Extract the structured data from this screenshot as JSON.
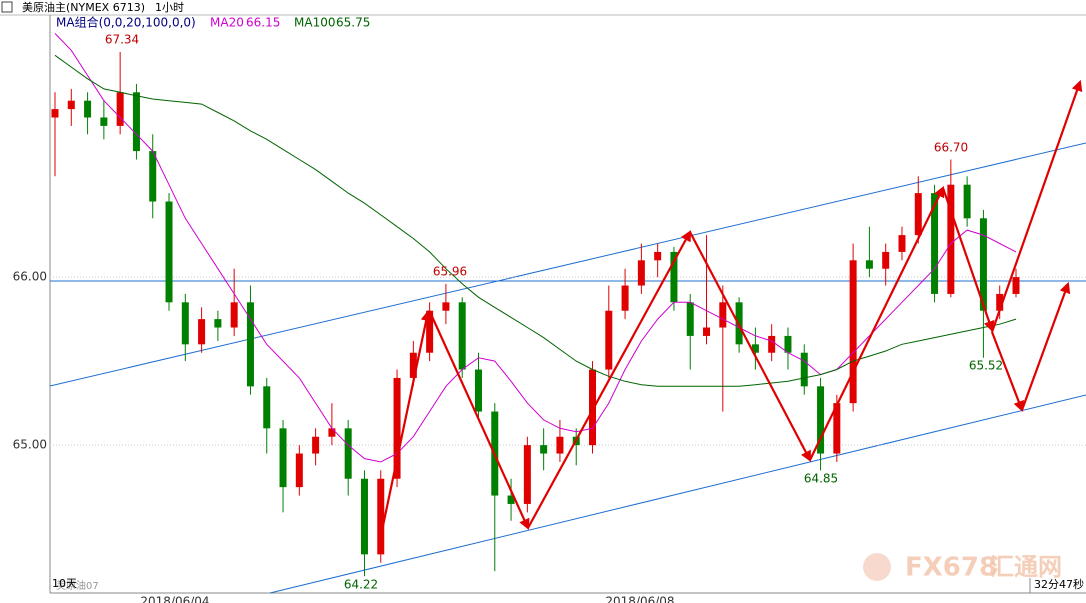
{
  "header": {
    "symbol": "美原油主(NYMEX 6713)",
    "period": "1小时",
    "ma_group": "MA组合(0,0,20,100,0,0)"
  },
  "footer": {
    "range": "10天",
    "contract": "美原油07",
    "timer": "32分47秒"
  },
  "watermark": {
    "brand": "FX678",
    "site": "汇通网"
  },
  "chart_data": {
    "type": "candlestick",
    "up_color": "#e00000",
    "down_color": "#008000",
    "open": [
      66.95,
      67.0,
      67.05,
      66.95,
      66.9,
      67.1,
      66.75,
      66.45,
      65.85,
      65.6,
      65.75,
      65.7,
      65.85,
      65.35,
      65.1,
      64.75,
      64.95,
      65.05,
      65.1,
      64.8,
      64.35,
      64.8,
      65.4,
      65.55,
      65.8,
      65.85,
      65.45,
      65.2,
      64.7,
      64.65,
      65.0,
      64.95,
      65.05,
      65.0,
      65.45,
      65.8,
      65.95,
      66.1,
      66.15,
      65.85,
      65.65,
      65.7,
      65.85,
      65.6,
      65.55,
      65.65,
      65.55,
      65.35,
      64.95,
      65.25,
      66.1,
      66.05,
      66.15,
      66.25,
      66.5,
      65.9,
      66.55,
      66.35,
      65.8,
      65.9
    ],
    "high": [
      67.1,
      67.12,
      67.1,
      67.05,
      67.34,
      67.15,
      66.85,
      66.5,
      65.9,
      65.82,
      65.8,
      66.05,
      65.95,
      65.4,
      65.15,
      65.0,
      65.1,
      65.25,
      65.15,
      64.85,
      64.85,
      65.45,
      65.62,
      65.85,
      65.96,
      65.88,
      65.55,
      65.25,
      64.8,
      65.05,
      65.1,
      65.15,
      65.1,
      65.5,
      65.95,
      66.05,
      66.2,
      66.2,
      66.18,
      65.9,
      66.25,
      65.95,
      65.88,
      65.7,
      65.72,
      65.7,
      65.6,
      65.4,
      65.3,
      66.2,
      66.3,
      66.2,
      66.3,
      66.6,
      66.55,
      66.7,
      66.6,
      66.4,
      65.95,
      66.05
    ],
    "low": [
      66.6,
      66.9,
      66.85,
      66.82,
      66.85,
      66.7,
      66.35,
      65.8,
      65.5,
      65.55,
      65.62,
      65.65,
      65.3,
      64.95,
      64.6,
      64.7,
      64.88,
      65.0,
      64.7,
      64.22,
      64.3,
      64.75,
      65.35,
      65.5,
      65.72,
      65.4,
      65.15,
      64.25,
      64.55,
      64.6,
      64.85,
      64.9,
      64.88,
      64.95,
      65.4,
      65.75,
      65.9,
      66.0,
      65.8,
      65.45,
      65.6,
      65.2,
      65.55,
      65.45,
      65.5,
      65.45,
      65.3,
      64.85,
      64.9,
      65.2,
      66.0,
      65.95,
      66.1,
      66.2,
      65.85,
      65.88,
      66.3,
      65.52,
      65.75,
      65.88
    ],
    "close": [
      67.0,
      67.05,
      66.95,
      66.9,
      67.1,
      66.75,
      66.45,
      65.85,
      65.6,
      65.75,
      65.7,
      65.85,
      65.35,
      65.1,
      64.75,
      64.95,
      65.05,
      65.1,
      64.8,
      64.35,
      64.8,
      65.4,
      65.55,
      65.8,
      65.85,
      65.45,
      65.2,
      64.7,
      64.65,
      65.0,
      64.95,
      65.05,
      65.0,
      65.45,
      65.8,
      65.95,
      66.1,
      66.15,
      65.85,
      65.65,
      65.7,
      65.85,
      65.6,
      65.55,
      65.65,
      65.55,
      65.35,
      64.95,
      65.25,
      66.1,
      66.05,
      66.15,
      66.25,
      66.5,
      65.9,
      66.55,
      66.35,
      65.8,
      65.9,
      66.0
    ],
    "series": [
      {
        "name": "MA20",
        "color": "#d000d0",
        "values": [
          67.45,
          67.35,
          67.2,
          67.05,
          66.95,
          66.85,
          66.75,
          66.55,
          66.35,
          66.2,
          66.05,
          65.9,
          65.75,
          65.6,
          65.5,
          65.4,
          65.25,
          65.1,
          65.0,
          64.92,
          64.9,
          64.95,
          65.05,
          65.2,
          65.35,
          65.45,
          65.52,
          65.5,
          65.38,
          65.25,
          65.15,
          65.1,
          65.08,
          65.1,
          65.25,
          65.45,
          65.62,
          65.75,
          65.85,
          65.85,
          65.8,
          65.75,
          65.7,
          65.65,
          65.62,
          65.55,
          65.5,
          65.42,
          65.45,
          65.55,
          65.65,
          65.75,
          65.85,
          65.95,
          66.05,
          66.2,
          66.28,
          66.25,
          66.2,
          66.15
        ]
      },
      {
        "name": "MA100",
        "color": "#006400",
        "values": [
          67.32,
          67.25,
          67.18,
          67.12,
          67.1,
          67.08,
          67.06,
          67.05,
          67.04,
          67.03,
          66.98,
          66.93,
          66.87,
          66.82,
          66.76,
          66.7,
          66.64,
          66.57,
          66.5,
          66.44,
          66.37,
          66.3,
          66.23,
          66.15,
          66.05,
          65.96,
          65.88,
          65.82,
          65.76,
          65.7,
          65.64,
          65.57,
          65.5,
          65.45,
          65.41,
          65.38,
          65.36,
          65.35,
          65.35,
          65.35,
          65.35,
          65.35,
          65.35,
          65.36,
          65.37,
          65.38,
          65.4,
          65.42,
          65.45,
          65.5,
          65.53,
          65.56,
          65.6,
          65.62,
          65.64,
          65.66,
          65.68,
          65.7,
          65.72,
          65.75
        ]
      }
    ],
    "ylim": [
      64.12,
      67.56
    ],
    "yticks": [
      {
        "value": 65,
        "label": "65.00"
      },
      {
        "value": 66,
        "label": "66.00"
      }
    ],
    "annotations": [
      "67.34",
      "65.96",
      "64.22",
      "66.70",
      "64.85",
      "65.52"
    ],
    "x_labels": [
      "2018/06/04",
      "2018/06/08"
    ]
  }
}
